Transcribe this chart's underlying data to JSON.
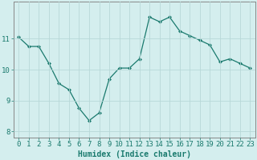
{
  "x": [
    0,
    1,
    2,
    3,
    4,
    5,
    6,
    7,
    8,
    9,
    10,
    11,
    12,
    13,
    14,
    15,
    16,
    17,
    18,
    19,
    20,
    21,
    22,
    23
  ],
  "y": [
    11.05,
    10.75,
    10.75,
    10.2,
    9.55,
    9.35,
    8.75,
    8.35,
    8.6,
    9.7,
    10.05,
    10.05,
    10.35,
    11.7,
    11.55,
    11.7,
    11.25,
    11.1,
    10.95,
    10.8,
    10.25,
    10.35,
    10.2,
    10.05
  ],
  "line_color": "#1a7a6e",
  "marker_color": "#1a7a6e",
  "bg_color": "#d4eeee",
  "grid_color": "#b8d8d8",
  "xlabel": "Humidex (Indice chaleur)",
  "xlabel_fontsize": 7,
  "tick_fontsize": 6.5,
  "yticks": [
    8,
    9,
    10,
    11
  ],
  "ylim": [
    7.8,
    12.2
  ],
  "xlim": [
    -0.5,
    23.5
  ],
  "xtick_labels": [
    "0",
    "1",
    "2",
    "3",
    "4",
    "5",
    "6",
    "7",
    "8",
    "9",
    "10",
    "11",
    "12",
    "13",
    "14",
    "15",
    "16",
    "17",
    "18",
    "19",
    "20",
    "21",
    "22",
    "23"
  ]
}
